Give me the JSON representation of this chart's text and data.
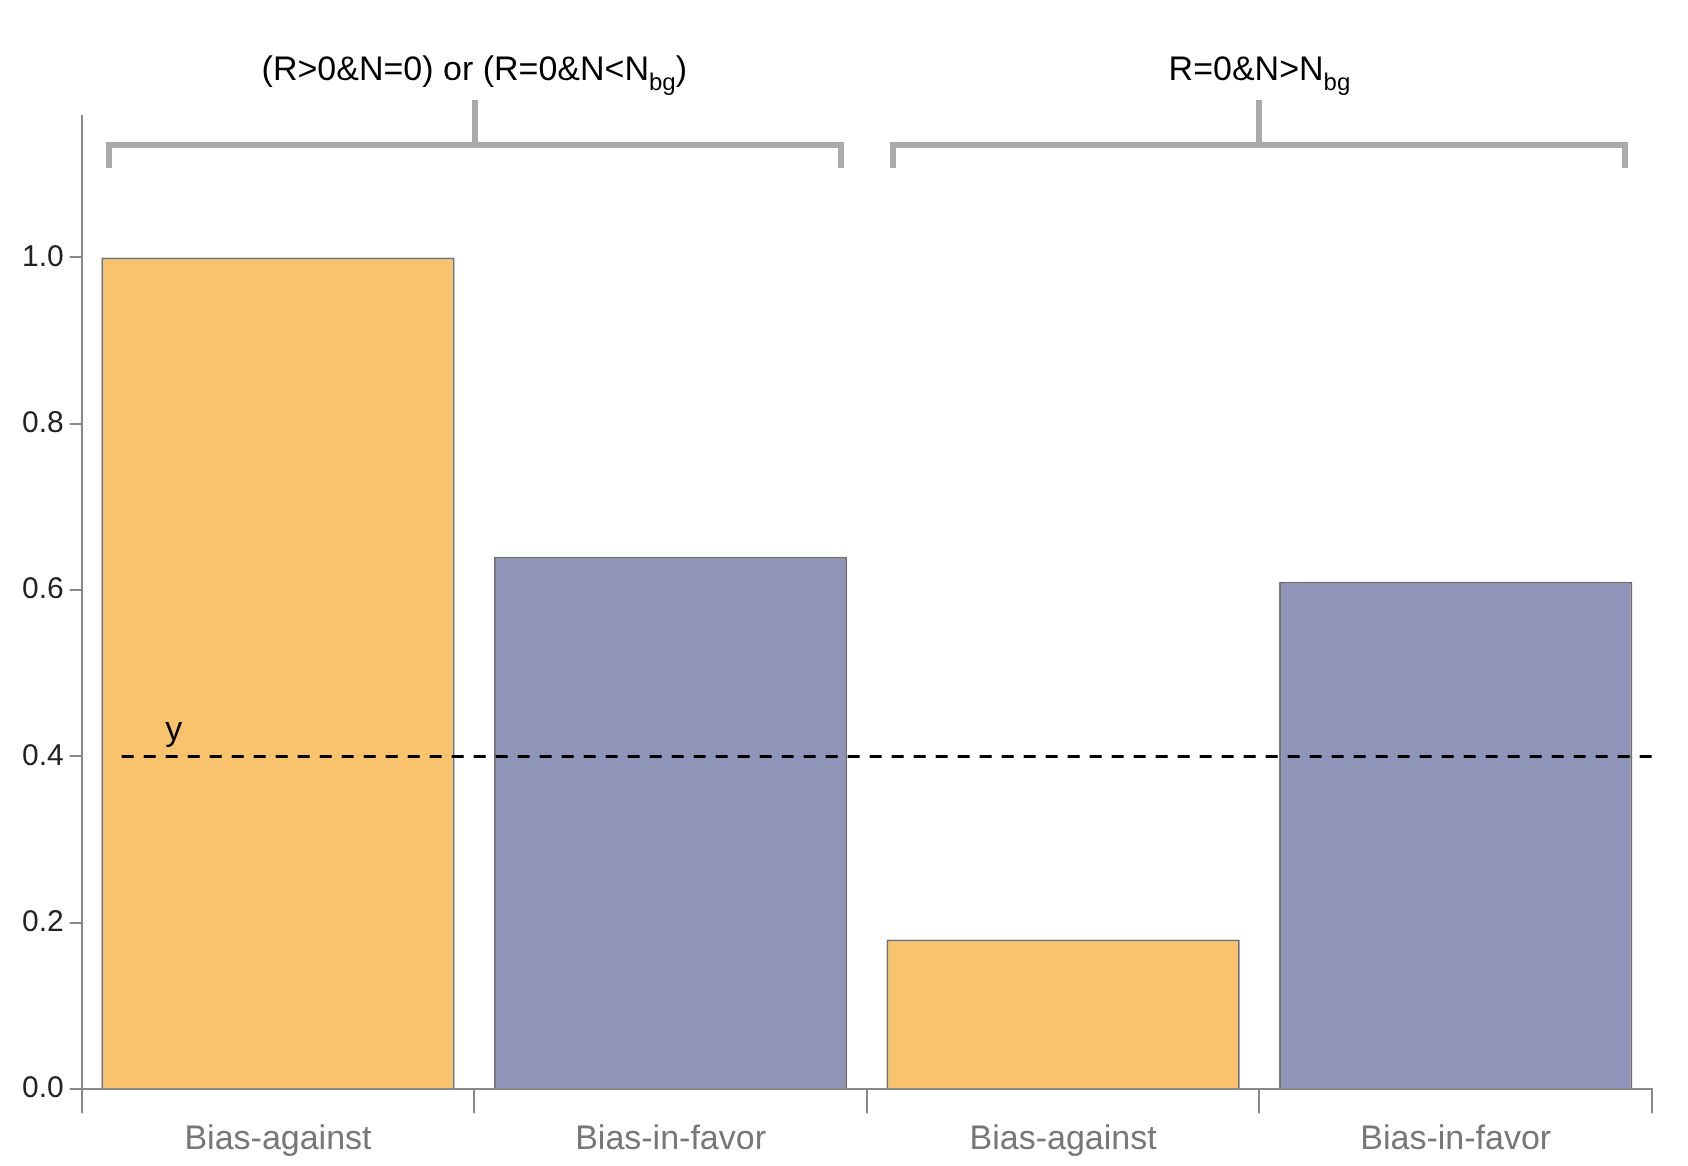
{
  "chart_data": {
    "type": "bar",
    "categories": [
      "Bias-against",
      "Bias-in-favor",
      "Bias-against",
      "Bias-in-favor"
    ],
    "values": [
      1.0,
      0.64,
      0.18,
      0.61
    ],
    "colors": [
      "#f8c36c",
      "#8f95b8",
      "#f8c36c",
      "#8f95b8"
    ],
    "ylim": [
      0,
      1.17
    ],
    "yticks": [
      {
        "value": 0,
        "label": "0.0"
      },
      0.2,
      0.4,
      0.6,
      0.8,
      {
        "value": 1,
        "label": "1.0"
      }
    ],
    "ref_lines": [
      {
        "axis": "y",
        "value": 0.4,
        "label": "y",
        "color": "#000000",
        "line_style": "dashed"
      }
    ],
    "annotations": [
      "(R>0&N=0) or (R=0&N<N$_{bg}$)",
      "R=0&N>N$_{bg}$"
    ],
    "grid": false,
    "legend": false
  }
}
